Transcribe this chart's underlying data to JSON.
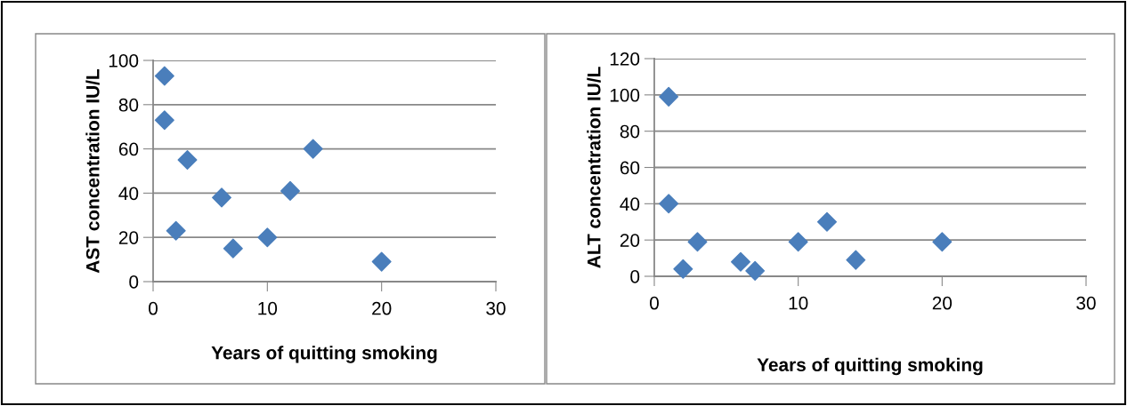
{
  "chart_data": [
    {
      "type": "scatter",
      "xlabel": "Years of quitting smoking",
      "ylabel": "AST concentration IU/L",
      "series": [
        {
          "color": "#4a7ebb",
          "x": [
            1,
            1,
            2,
            3,
            6,
            7,
            10,
            12,
            14,
            20
          ],
          "values": [
            93,
            73,
            23,
            55,
            38,
            15,
            20,
            41,
            60,
            9
          ]
        }
      ],
      "xlim": [
        0,
        30
      ],
      "xticks": [
        0,
        10,
        20,
        30
      ],
      "ylim": [
        0,
        100
      ],
      "yticks": [
        0,
        20,
        40,
        60,
        80,
        100
      ],
      "grid": "y",
      "marker": "diamond"
    },
    {
      "type": "scatter",
      "xlabel": "Years of quitting smoking",
      "ylabel": "ALT concentration IU/L",
      "series": [
        {
          "color": "#4a7ebb",
          "x": [
            1,
            1,
            2,
            3,
            6,
            7,
            10,
            12,
            14,
            20
          ],
          "values": [
            99,
            40,
            4,
            19,
            8,
            3,
            19,
            30,
            9,
            19
          ]
        }
      ],
      "xlim": [
        0,
        30
      ],
      "xticks": [
        0,
        10,
        20,
        30
      ],
      "ylim": [
        0,
        120
      ],
      "yticks": [
        0,
        20,
        40,
        60,
        80,
        100,
        120
      ],
      "grid": "y",
      "marker": "diamond"
    }
  ]
}
